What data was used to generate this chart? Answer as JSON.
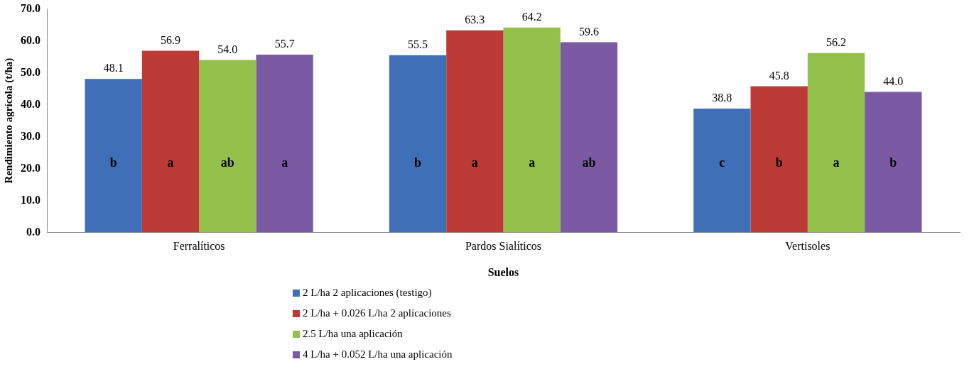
{
  "chart_data": {
    "type": "bar",
    "xlabel": "Suelos",
    "ylabel": "Rendimiento agrícola (t/ha)",
    "categories": [
      "Ferralíticos",
      "Pardos Sialíticos",
      "Vertisoles"
    ],
    "series": [
      {
        "name": "2 L/ha 2 aplicaciones  (testigo)",
        "color": "#3f6fb7",
        "values": [
          48.1,
          55.5,
          38.8
        ],
        "value_labels": [
          "48.1",
          "55.5",
          "38.8"
        ]
      },
      {
        "name": "2 L/ha + 0.026 L/ha  2 aplicaciones",
        "color": "#bd3b37",
        "values": [
          56.9,
          63.3,
          45.8
        ],
        "value_labels": [
          "56.9",
          "63.3",
          "45.8"
        ]
      },
      {
        "name": "2.5 L/ha una aplicación",
        "color": "#93bf4b",
        "values": [
          54.0,
          64.2,
          56.2
        ],
        "value_labels": [
          "54.0",
          "64.2",
          "56.2"
        ]
      },
      {
        "name": "4 L/ha + 0.052 L/ha una aplicación",
        "color": "#7b5aa3",
        "values": [
          55.7,
          59.6,
          44.0
        ],
        "value_labels": [
          "55.7",
          "59.6",
          "44.0"
        ]
      }
    ],
    "ylim": [
      0,
      70
    ],
    "yticks": [
      {
        "value": 0,
        "label": "0.0"
      },
      {
        "value": 10,
        "label": "10.0"
      },
      {
        "value": 20,
        "label": "20.0"
      },
      {
        "value": 30,
        "label": "30.0"
      },
      {
        "value": 40,
        "label": "40.0"
      },
      {
        "value": 50,
        "label": "50.0"
      },
      {
        "value": 60,
        "label": "60.0"
      },
      {
        "value": 70,
        "label": "70.0"
      }
    ],
    "grid": false,
    "legend": "bottom",
    "annotations": [
      "b",
      "a",
      "ab",
      "a",
      "b",
      "a",
      "a",
      "ab",
      "c",
      "b",
      "a",
      "b"
    ]
  }
}
